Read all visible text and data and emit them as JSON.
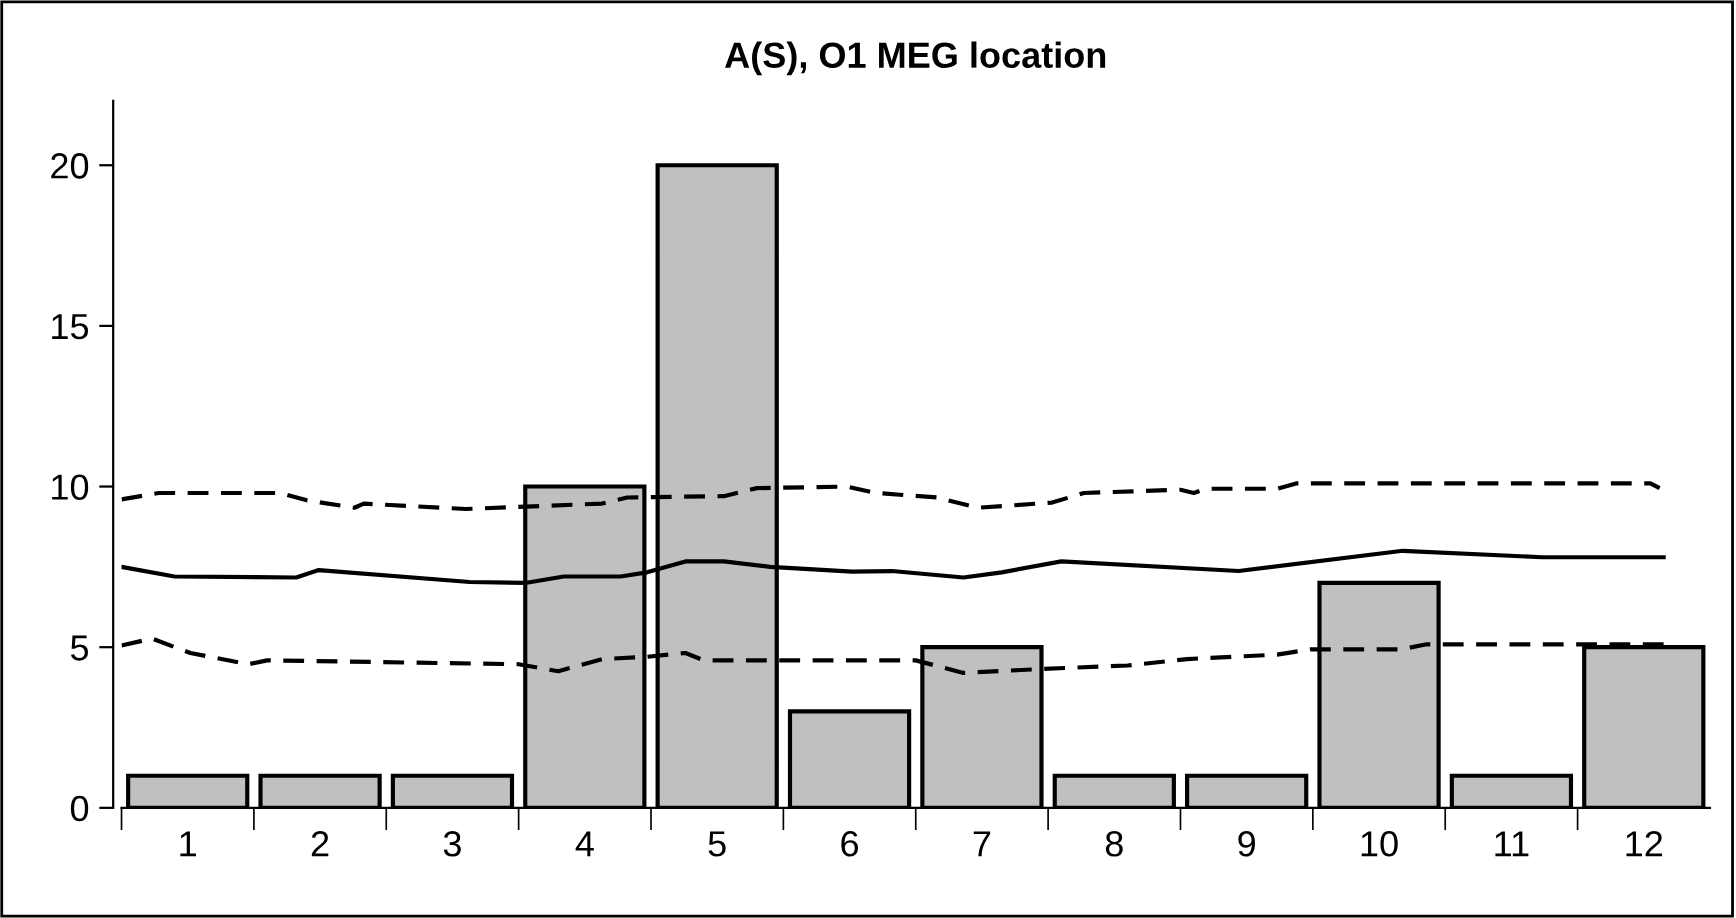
{
  "chart_data": {
    "type": "bar",
    "title": "A(S), O1 MEG location",
    "x": [
      1,
      2,
      3,
      4,
      5,
      6,
      7,
      8,
      9,
      10,
      11,
      12
    ],
    "xlim": [
      0.5,
      12.5
    ],
    "xticks": [
      1,
      2,
      3,
      4,
      5,
      6,
      7,
      8,
      9,
      10,
      11,
      12,
      {
        "value": 0.5,
        "label": null
      },
      {
        "value": 1.5,
        "label": null
      },
      {
        "value": 2.5,
        "label": null
      },
      {
        "value": 3.5,
        "label": null
      },
      {
        "value": 4.5,
        "label": null
      },
      {
        "value": 5.5,
        "label": null
      },
      {
        "value": 6.5,
        "label": null
      },
      {
        "value": 7.5,
        "label": null
      },
      {
        "value": 8.5,
        "label": null
      },
      {
        "value": 9.5,
        "label": null
      },
      {
        "value": 10.5,
        "label": null
      },
      {
        "value": 11.5,
        "label": null
      }
    ],
    "ylim": [
      0,
      22
    ],
    "yticks": [
      0,
      5,
      10,
      15,
      20
    ],
    "grid": false,
    "legend": false,
    "series": [
      {
        "color": "#c0c0c0",
        "values": [
          1,
          1,
          1,
          10,
          20,
          3,
          5,
          1,
          1,
          7,
          1,
          5
        ]
      },
      {
        "type": "line",
        "color": "#000000",
        "line_style": "solid",
        "x": [
          0.5,
          0.9,
          1.82,
          1.99,
          3.13,
          3.55,
          3.84,
          4.27,
          4.47,
          4.76,
          5.05,
          5.4,
          6.02,
          6.32,
          6.86,
          7.15,
          7.6,
          8.94,
          10.18,
          11.23,
          12.15
        ],
        "values": [
          7.5,
          7.2,
          7.17,
          7.4,
          7.03,
          7.0,
          7.2,
          7.2,
          7.33,
          7.67,
          7.67,
          7.5,
          7.35,
          7.37,
          7.17,
          7.33,
          7.67,
          7.37,
          8.0,
          7.8,
          7.8
        ]
      },
      {
        "type": "line",
        "color": "#000000",
        "line_style": "dashed",
        "x": [
          0.5,
          0.78,
          1.7,
          1.9,
          2.26,
          2.33,
          3.1,
          4.13,
          4.32,
          5.05,
          5.3,
          5.98,
          6.2,
          6.66,
          6.97,
          7.53,
          7.77,
          8.5,
          8.6,
          8.69,
          9.23,
          9.38,
          12.05,
          12.12
        ],
        "values": [
          9.6,
          9.8,
          9.8,
          9.57,
          9.34,
          9.47,
          9.3,
          9.47,
          9.66,
          9.7,
          9.95,
          10.0,
          9.8,
          9.66,
          9.34,
          9.5,
          9.8,
          9.9,
          9.8,
          9.93,
          9.93,
          10.1,
          10.1,
          9.95
        ]
      },
      {
        "type": "line",
        "color": "#000000",
        "line_style": "dashed",
        "x": [
          0.5,
          0.73,
          1.02,
          1.46,
          1.6,
          3.5,
          3.8,
          4.13,
          4.47,
          4.76,
          4.9,
          6.02,
          6.5,
          6.86,
          7.44,
          8.1,
          8.55,
          9.23,
          9.48,
          10.16,
          10.36,
          12.15
        ],
        "values": [
          5.05,
          5.27,
          4.82,
          4.47,
          4.59,
          4.47,
          4.25,
          4.63,
          4.7,
          4.82,
          4.59,
          4.59,
          4.59,
          4.2,
          4.32,
          4.43,
          4.63,
          4.77,
          4.93,
          4.93,
          5.09,
          5.09
        ]
      }
    ]
  }
}
